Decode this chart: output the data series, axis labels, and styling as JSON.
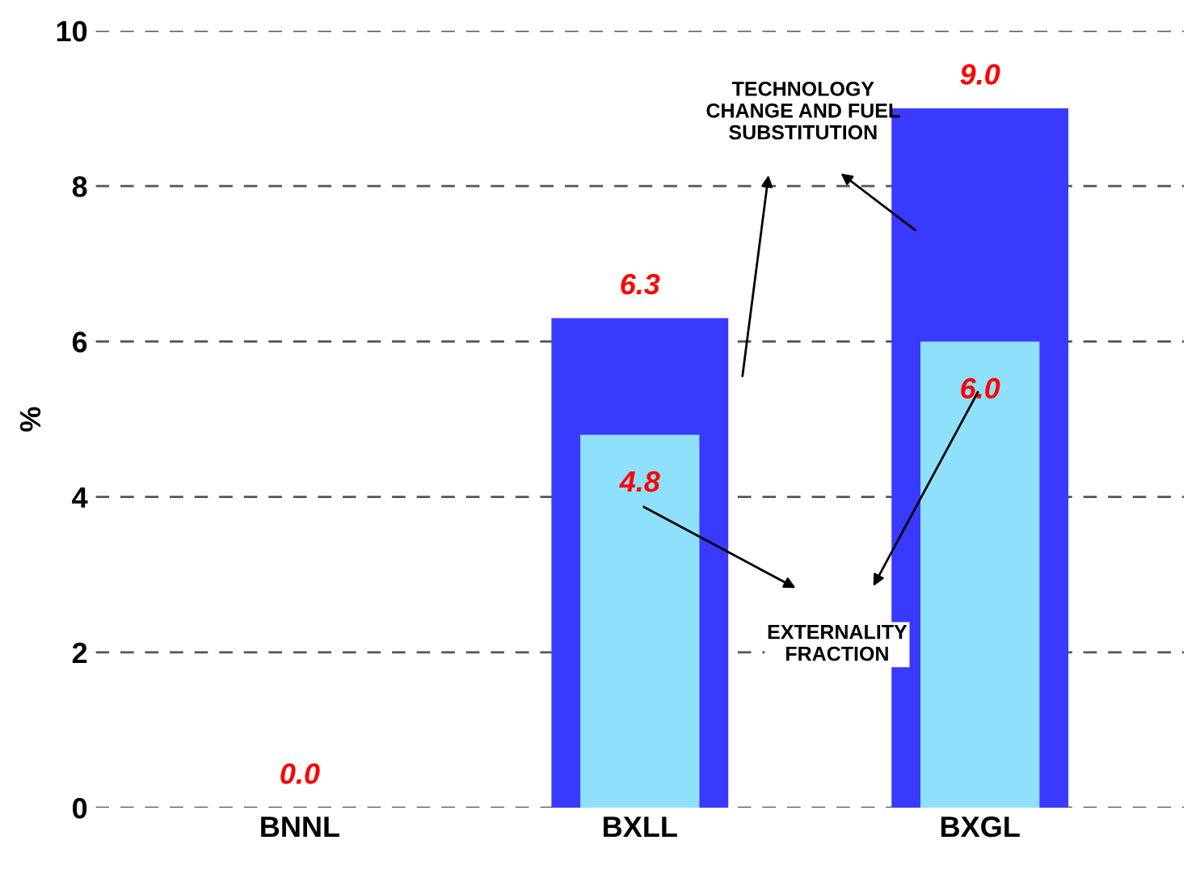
{
  "chart_data": {
    "type": "bar",
    "ylabel": "%",
    "categories": [
      "BNNL",
      "BXLL",
      "BXGL"
    ],
    "series": [
      {
        "color": "#3a3aff",
        "values": [
          0.0,
          6.3,
          9.0
        ],
        "value_labels": [
          "0.0",
          "6.3",
          "9.0"
        ]
      },
      {
        "color": "#8fe0fa",
        "values": [
          0.0,
          4.8,
          6.0
        ],
        "value_labels": [
          null,
          "4.8",
          "6.0"
        ]
      }
    ],
    "ylim": [
      0,
      10
    ],
    "yticks": [
      0,
      2,
      4,
      6,
      8,
      10
    ],
    "grid": "y",
    "annotations": [
      "TECHNOLOGY\nCHANGE AND FUEL\nSUBSTITUTION",
      "EXTERNALITY\nFRACTION"
    ]
  }
}
